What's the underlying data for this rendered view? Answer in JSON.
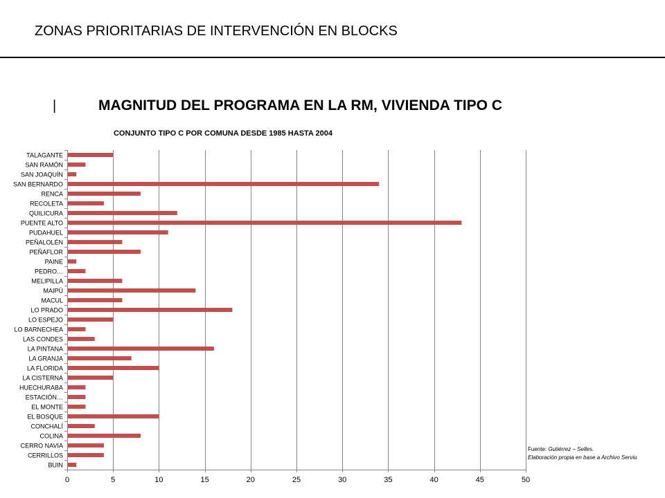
{
  "header": {
    "title": "ZONAS PRIORITARIAS DE INTERVENCIÓN EN BLOCKS",
    "section_marker": "|",
    "section_title": "MAGNITUD DEL PROGRAMA EN LA RM, VIVIENDA TIPO C"
  },
  "source": {
    "prefix": "Fuente: ",
    "authors": "Gutiérrez – Selles.",
    "note": "Elaboración propia en base a Archivo Serviu"
  },
  "colors": {
    "bar": "#c0504d",
    "grid": "#868686",
    "axis": "#868686"
  },
  "chart_data": {
    "type": "bar",
    "orientation": "horizontal",
    "title": "CONJUNTO TIPO C POR COMUNA DESDE 1985  HASTA 2004",
    "xlabel": "",
    "ylabel": "",
    "xlim": [
      0,
      50
    ],
    "xticks": [
      0,
      5,
      10,
      15,
      20,
      25,
      30,
      35,
      40,
      45,
      50
    ],
    "grid": "vertical",
    "legend": "none",
    "categories": [
      "TALAGANTE",
      "SAN RAMÓN",
      "SAN JOAQUÍN",
      "SAN BERNARDO",
      "RENCA",
      "RECOLETA",
      "QUILICURA",
      "PUENTE ALTO",
      "PUDAHUEL",
      "PEÑALOLÉN",
      "PEÑAFLOR",
      "PAINE",
      "PEDRO…",
      "MELIPILLA",
      "MAIPÚ",
      "MACUL",
      "LO PRADO",
      "LO ESPEJO",
      "LO BARNECHEA",
      "LAS CONDES",
      "LA PINTANA",
      "LA GRANJA",
      "LA FLORIDA",
      "LA CISTERNA",
      "HUECHURABA",
      "ESTACIÓN…",
      "EL MONTE",
      "EL BOSQUE",
      "CONCHALÍ",
      "COLINA",
      "CERRO NAVIA",
      "CERRILLOS",
      "BUIN"
    ],
    "values": [
      5,
      2,
      1,
      34,
      8,
      4,
      12,
      43,
      11,
      6,
      8,
      1,
      2,
      6,
      14,
      6,
      18,
      5,
      2,
      3,
      16,
      7,
      10,
      5,
      2,
      2,
      2,
      10,
      3,
      8,
      4,
      4,
      1
    ]
  }
}
